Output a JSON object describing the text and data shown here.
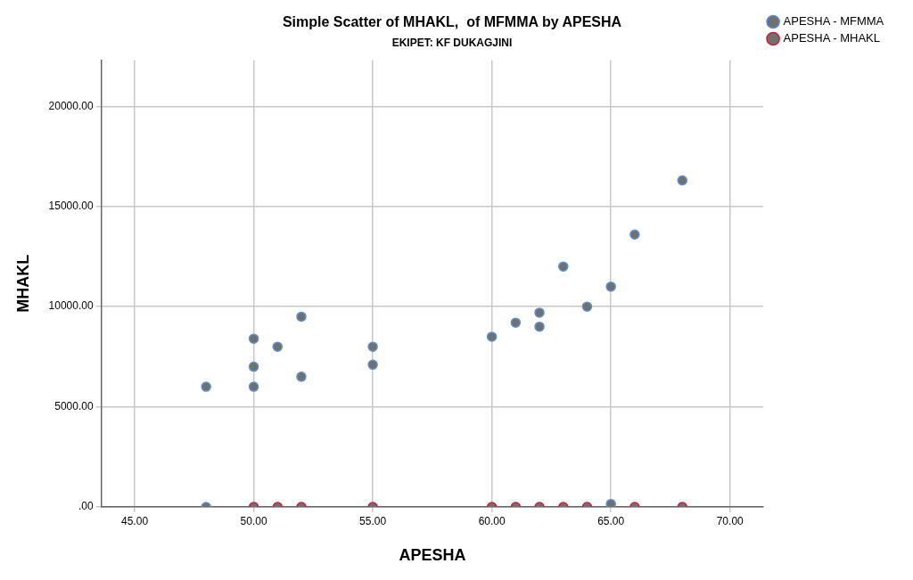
{
  "chart_data": {
    "type": "scatter",
    "title": "Simple Scatter of MHAKL,  of MFMMA by APESHA",
    "subtitle": "EKIPET: KF DUKAGJINI",
    "xlabel": "APESHA",
    "ylabel": "MHAKL",
    "series": [
      {
        "name": "APESHA - MFMMA",
        "color": "#5b8fd6",
        "x": [
          48,
          50,
          50,
          50,
          51,
          52,
          52,
          55,
          55,
          60,
          61,
          62,
          62,
          63,
          64,
          65,
          66,
          68,
          48,
          65
        ],
        "values": [
          6000,
          8400,
          7000,
          6000,
          8000,
          9500,
          6500,
          8000,
          7100,
          8500,
          9200,
          9700,
          9000,
          12000,
          10000,
          11000,
          13600,
          16300,
          0,
          150
        ]
      },
      {
        "name": "APESHA - MHAKL",
        "color": "#d01c3c",
        "x": [
          50,
          51,
          52,
          55,
          60,
          61,
          62,
          63,
          64,
          66,
          68
        ],
        "values": [
          0,
          0,
          0,
          0,
          0,
          0,
          0,
          0,
          0,
          0,
          0
        ]
      }
    ],
    "xlim": [
      43.6,
      71.4
    ],
    "xticks": [
      {
        "value": 45,
        "label": "45.00"
      },
      {
        "value": 50,
        "label": "50.00"
      },
      {
        "value": 55,
        "label": "55.00"
      },
      {
        "value": 60,
        "label": "60.00"
      },
      {
        "value": 65,
        "label": "65.00"
      },
      {
        "value": 70,
        "label": "70.00"
      }
    ],
    "ylim": [
      0,
      22300
    ],
    "yticks": [
      {
        "value": 0,
        "label": ".00"
      },
      {
        "value": 5000,
        "label": "5000.00"
      },
      {
        "value": 10000,
        "label": "10000.00"
      },
      {
        "value": 15000,
        "label": "15000.00"
      },
      {
        "value": 20000,
        "label": "20000.00"
      }
    ],
    "grid": true,
    "legend": "top right",
    "marker": "circle"
  }
}
